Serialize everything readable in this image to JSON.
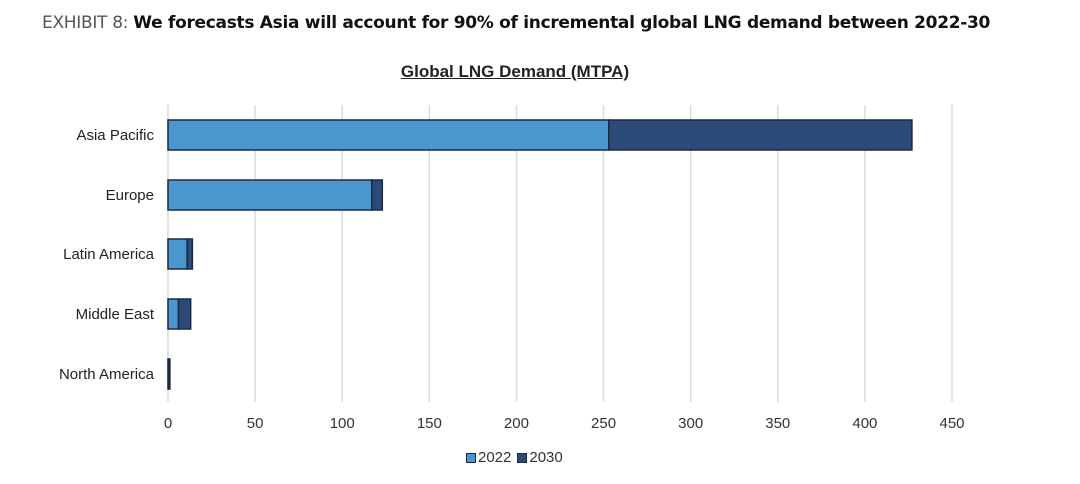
{
  "exhibit": {
    "label": "EXHIBIT 8: ",
    "headline": "We forecasts Asia will account for 90% of incremental global LNG demand between 2022-30"
  },
  "chart_data": {
    "type": "bar",
    "orientation": "horizontal",
    "stacked": true,
    "title": "Global LNG Demand (MTPA)",
    "xlabel": "",
    "ylabel": "",
    "categories": [
      "Asia Pacific",
      "Europe",
      "Latin America",
      "Middle East",
      "North America"
    ],
    "series": [
      {
        "name": "2022",
        "color": "#4a97d0",
        "values": [
          253,
          117,
          11,
          6,
          0.5
        ]
      },
      {
        "name": "2030",
        "color": "#2b4a78",
        "values": [
          174,
          6,
          3,
          7,
          0.5
        ]
      }
    ],
    "xlim": [
      0,
      450
    ],
    "xticks": [
      0,
      50,
      100,
      150,
      200,
      250,
      300,
      350,
      400,
      450
    ],
    "grid": true,
    "legend": "bottom-center",
    "bar_edge_color": "#1a2a44"
  }
}
